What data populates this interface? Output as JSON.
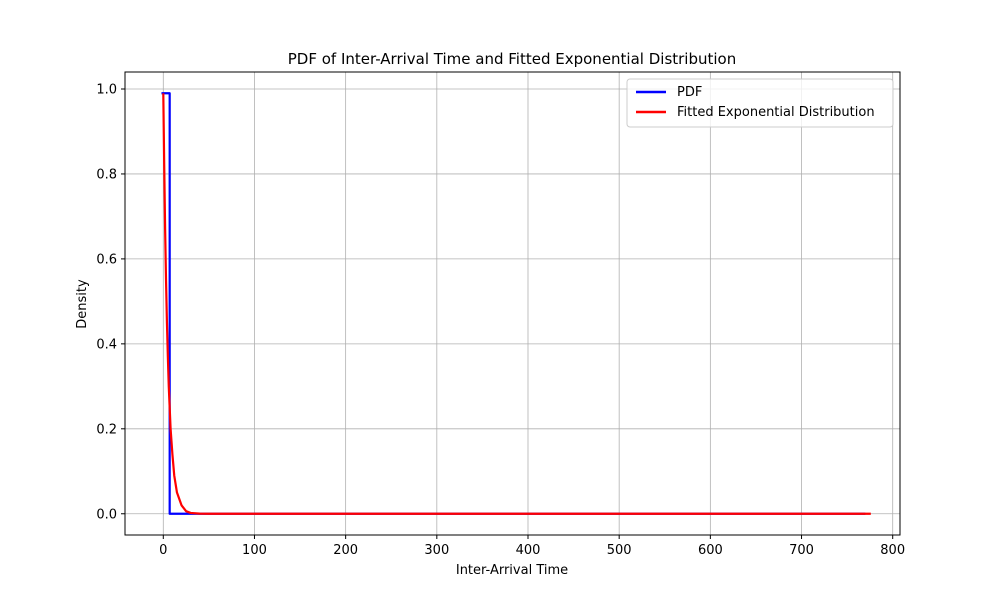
{
  "chart_data": {
    "type": "line",
    "title": "PDF of Inter-Arrival Time and Fitted Exponential Distribution",
    "xlabel": "Inter-Arrival Time",
    "ylabel": "Density",
    "xlim": [
      -42,
      808
    ],
    "ylim": [
      -0.05,
      1.04
    ],
    "xticks": [
      0,
      100,
      200,
      300,
      400,
      500,
      600,
      700,
      800
    ],
    "yticks": [
      0.0,
      0.2,
      0.4,
      0.6,
      0.8,
      1.0
    ],
    "xtick_labels": [
      "0",
      "100",
      "200",
      "300",
      "400",
      "500",
      "600",
      "700",
      "800"
    ],
    "ytick_labels": [
      "0.0",
      "0.2",
      "0.4",
      "0.6",
      "0.8",
      "1.0"
    ],
    "grid": true,
    "legend_position": "top-right",
    "series": [
      {
        "name": "PDF",
        "color": "#0000ff",
        "x": [
          -2,
          4,
          4,
          7,
          7,
          770
        ],
        "y": [
          0.99,
          0.99,
          0.99,
          0.99,
          0,
          0
        ]
      },
      {
        "name": "Fitted Exponential Distribution",
        "color": "#ff0000",
        "x": [
          0,
          1,
          2,
          3,
          4,
          5,
          6,
          7,
          8,
          10,
          12,
          15,
          20,
          25,
          30,
          40,
          50,
          100,
          200,
          400,
          600,
          776
        ],
        "y": [
          0.99,
          0.82,
          0.67,
          0.55,
          0.45,
          0.37,
          0.3,
          0.25,
          0.2,
          0.14,
          0.09,
          0.05,
          0.02,
          0.006,
          0.002,
          0.0003,
          0.0,
          0.0,
          0.0,
          0.0,
          0.0,
          0.0
        ]
      }
    ]
  }
}
